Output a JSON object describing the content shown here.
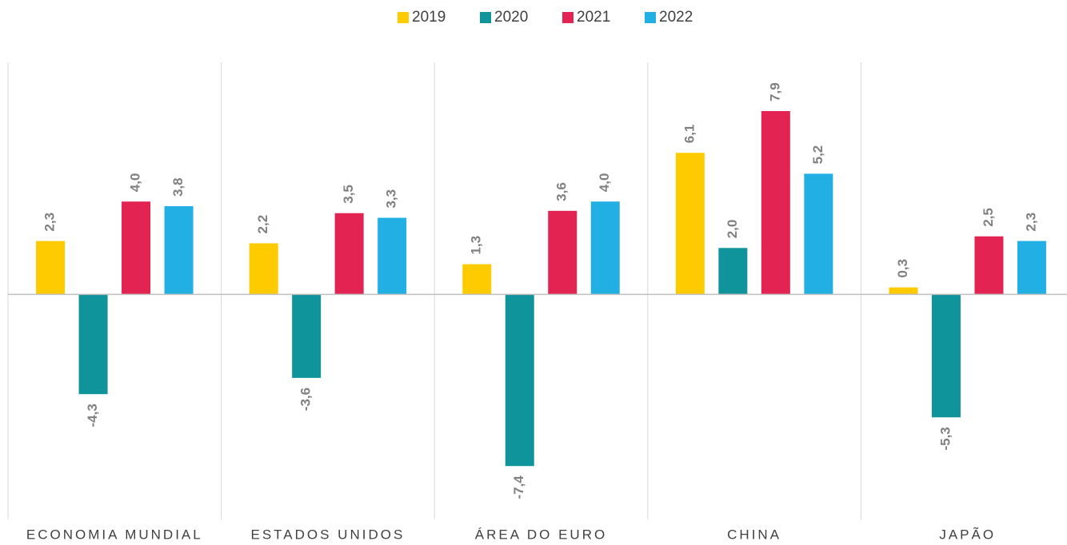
{
  "chart_data": {
    "type": "bar",
    "categories": [
      "ECONOMIA MUNDIAL",
      "ESTADOS UNIDOS",
      "ÁREA DO EURO",
      "CHINA",
      "JAPÃO"
    ],
    "series": [
      {
        "name": "2019",
        "color": "#fecb00",
        "values": [
          2.3,
          2.2,
          1.3,
          6.1,
          0.3
        ],
        "value_labels": [
          "2,3",
          "2,2",
          "1,3",
          "6,1",
          "0,3"
        ]
      },
      {
        "name": "2020",
        "color": "#10949c",
        "values": [
          -4.3,
          -3.6,
          -7.4,
          2.0,
          -5.3
        ],
        "value_labels": [
          "-4,3",
          "-3,6",
          "-7,4",
          "2,0",
          "-5,3"
        ]
      },
      {
        "name": "2021",
        "color": "#e32452",
        "values": [
          4.0,
          3.5,
          3.6,
          7.9,
          2.5
        ],
        "value_labels": [
          "4,0",
          "3,5",
          "3,6",
          "7,9",
          "2,5"
        ]
      },
      {
        "name": "2022",
        "color": "#22b0e4",
        "values": [
          3.8,
          3.3,
          4.0,
          5.2,
          2.3
        ],
        "value_labels": [
          "3,8",
          "3,3",
          "4,0",
          "5,2",
          "2,3"
        ]
      }
    ],
    "ylim": [
      -9.7,
      10
    ],
    "legend": "top"
  }
}
